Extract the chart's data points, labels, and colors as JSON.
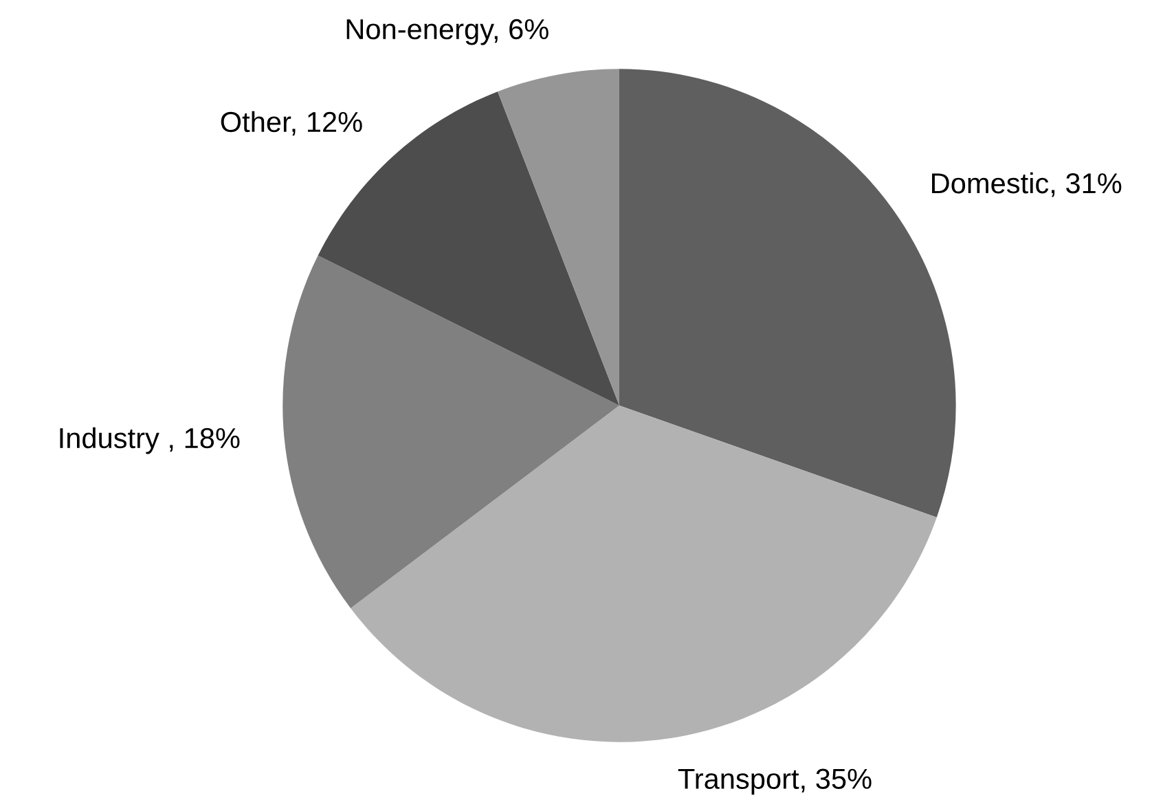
{
  "chart_data": {
    "type": "pie",
    "categories": [
      "Domestic",
      "Transport",
      "Industry ",
      "Other",
      "Non-energy"
    ],
    "values": [
      31,
      35,
      18,
      12,
      6
    ],
    "value_labels": [
      "31%",
      "35%",
      "18%",
      "12%",
      "6%"
    ],
    "colors": [
      "#5f5f5f",
      "#b2b2b2",
      "#808080",
      "#4d4d4d",
      "#969696"
    ],
    "legend": false
  }
}
